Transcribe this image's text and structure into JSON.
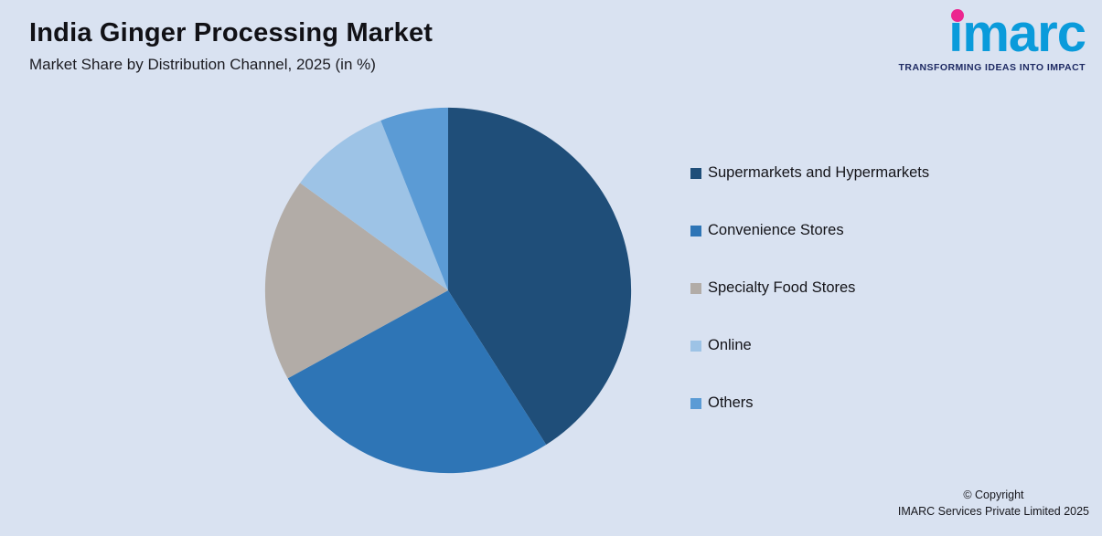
{
  "header": {
    "title": "India Ginger Processing Market",
    "subtitle": "Market Share by Distribution Channel, 2025 (in %)"
  },
  "logo": {
    "text": "imarc",
    "tagline": "TRANSFORMING IDEAS INTO IMPACT",
    "brand_color": "#0a9bdb",
    "dot_color": "#ec268f",
    "tagline_color": "#1e2a63"
  },
  "chart_data": {
    "type": "pie",
    "title": "India Ginger Processing Market",
    "subtitle": "Market Share by Distribution Channel, 2025 (in %)",
    "units": "%",
    "categories": [
      "Supermarkets and Hypermarkets",
      "Convenience Stores",
      "Specialty Food Stores",
      "Online",
      "Others"
    ],
    "values": [
      41,
      26,
      18,
      9,
      6
    ],
    "colors": [
      "#1f4e79",
      "#2e75b6",
      "#b2aca7",
      "#9dc3e6",
      "#5b9bd5"
    ],
    "start_angle_deg": 0,
    "direction": "clockwise",
    "legend_position": "right",
    "data_labels": false
  },
  "background_color": "#d9e2f1",
  "footer": {
    "line1": "© Copyright",
    "line2": "IMARC Services Private Limited 2025"
  }
}
